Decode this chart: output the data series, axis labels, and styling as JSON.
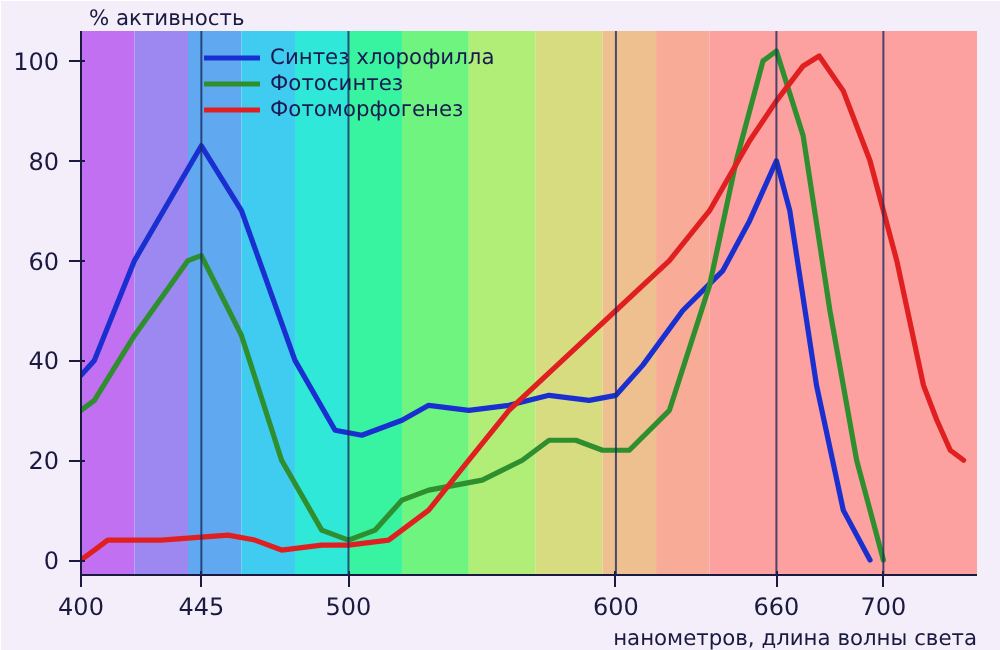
{
  "chart_data": {
    "type": "line",
    "xlabel": "нанометров, длина волны света",
    "ylabel": "% активность",
    "xlim": [
      400,
      735
    ],
    "ylim": [
      -3,
      106
    ],
    "xticks": [
      400,
      445,
      500,
      600,
      660,
      700
    ],
    "yticks": [
      0,
      20,
      40,
      60,
      80,
      100
    ],
    "grid": false,
    "legend": "top left",
    "marker": "none",
    "line_style": "solid",
    "series": [
      {
        "name": "Синтез хлорофилла",
        "color": "#1a2fd0",
        "x": [
          400,
          405,
          420,
          445,
          460,
          480,
          495,
          505,
          520,
          530,
          545,
          560,
          575,
          590,
          600,
          610,
          625,
          640,
          650,
          660,
          665,
          675,
          685,
          695
        ],
        "values": [
          37,
          40,
          60,
          83,
          70,
          40,
          26,
          25,
          28,
          31,
          30,
          31,
          33,
          32,
          33,
          39,
          50,
          58,
          68,
          80,
          70,
          35,
          10,
          0
        ]
      },
      {
        "name": "Фотосинтез",
        "color": "#2f8f2f",
        "x": [
          400,
          405,
          420,
          440,
          445,
          460,
          475,
          490,
          500,
          510,
          520,
          530,
          550,
          565,
          575,
          585,
          595,
          605,
          620,
          635,
          645,
          655,
          660,
          670,
          680,
          690,
          700
        ],
        "values": [
          30,
          32,
          45,
          60,
          61,
          45,
          20,
          6,
          4,
          6,
          12,
          14,
          16,
          20,
          24,
          24,
          22,
          22,
          30,
          55,
          80,
          100,
          102,
          85,
          50,
          20,
          0
        ]
      },
      {
        "name": "Фотоморфогенез",
        "color": "#e02020",
        "x": [
          400,
          405,
          410,
          430,
          455,
          465,
          475,
          490,
          500,
          515,
          530,
          545,
          560,
          580,
          600,
          620,
          635,
          650,
          660,
          670,
          676,
          685,
          695,
          705,
          715,
          720,
          725,
          730
        ],
        "values": [
          0,
          2,
          4,
          4,
          5,
          4,
          2,
          3,
          3,
          4,
          10,
          20,
          30,
          40,
          50,
          60,
          70,
          84,
          92,
          99,
          101,
          94,
          80,
          60,
          35,
          28,
          22,
          20
        ]
      }
    ],
    "ref_lines": [
      {
        "axis": "x",
        "value": 445,
        "color": "#1a2a60"
      },
      {
        "axis": "x",
        "value": 500,
        "color": "#1a2a60"
      },
      {
        "axis": "x",
        "value": 600,
        "color": "#1a2a60"
      },
      {
        "axis": "x",
        "value": 660,
        "color": "#1a2a60"
      },
      {
        "axis": "x",
        "value": 700,
        "color": "#1a2a60"
      }
    ],
    "bands": [
      {
        "axis": "x",
        "from": 400,
        "to": 420,
        "color": "#c070f0"
      },
      {
        "axis": "x",
        "from": 420,
        "to": 440,
        "color": "#9c88f0"
      },
      {
        "axis": "x",
        "from": 440,
        "to": 460,
        "color": "#60a8f0"
      },
      {
        "axis": "x",
        "from": 460,
        "to": 480,
        "color": "#40ccf0"
      },
      {
        "axis": "x",
        "from": 480,
        "to": 500,
        "color": "#30e8d8"
      },
      {
        "axis": "x",
        "from": 500,
        "to": 520,
        "color": "#38f4a0"
      },
      {
        "axis": "x",
        "from": 520,
        "to": 545,
        "color": "#70f480"
      },
      {
        "axis": "x",
        "from": 545,
        "to": 570,
        "color": "#b0ee78"
      },
      {
        "axis": "x",
        "from": 570,
        "to": 595,
        "color": "#d8dc80"
      },
      {
        "axis": "x",
        "from": 595,
        "to": 615,
        "color": "#eec090"
      },
      {
        "axis": "x",
        "from": 615,
        "to": 635,
        "color": "#f8ac98"
      },
      {
        "axis": "x",
        "from": 635,
        "to": 735,
        "color": "#fca0a0"
      }
    ]
  }
}
